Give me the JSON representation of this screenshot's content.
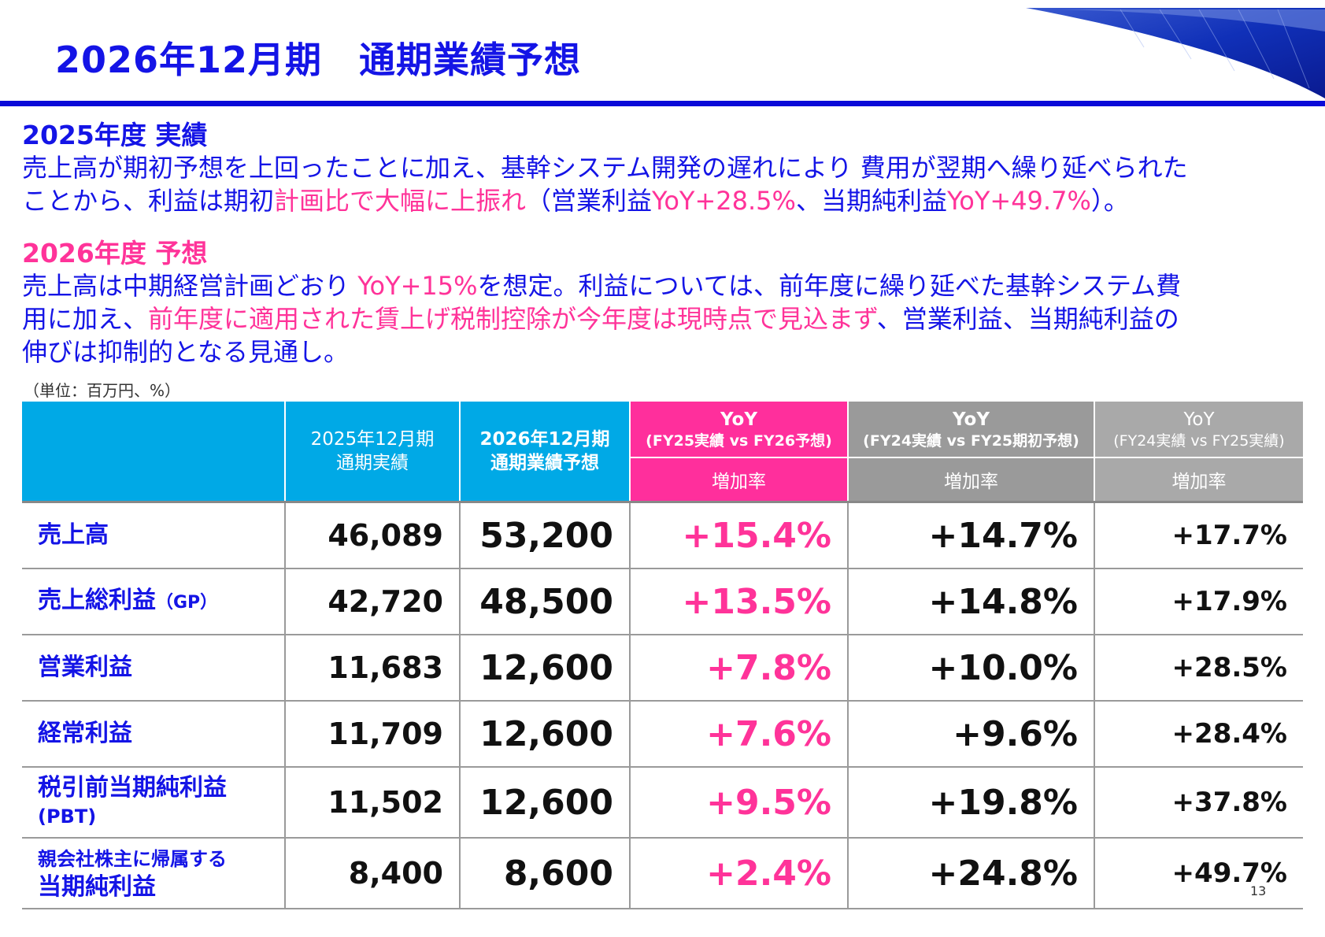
{
  "slide": {
    "title": "2026年12月期　通期業績予想",
    "page_number": "13"
  },
  "results_2025": {
    "heading": "2025年度 実績",
    "line1": "売上高が期初予想を上回ったことに加え、基幹システム開発の遅れにより 費用が翌期へ繰り延べられた",
    "line2_a": "ことから、利益は期初",
    "line2_b": "計画比で大幅に上振れ",
    "line2_c": "（営業利益",
    "line2_d": "YoY+28.5%",
    "line2_e": "、当期純利益",
    "line2_f": "YoY+49.7%",
    "line2_g": "）。"
  },
  "forecast_2026": {
    "heading": "2026年度 予想",
    "line1_a": "売上高は中期経営計画どおり ",
    "line1_b": "YoY+15%",
    "line1_c": "を想定。利益については、前年度に繰り延べた基幹システム費",
    "line2_a": "用に加え、",
    "line2_b": "前年度に適用された賃上げ税制控除が今年度は現時点で見込まず",
    "line2_c": "、営業利益、当期純利益の",
    "line3": "伸びは抑制的となる見通し。"
  },
  "table": {
    "unit": "（単位：百万円、%）",
    "headers": {
      "fy25_line1": "2025年12月期",
      "fy25_line2": "通期実績",
      "fy26_line1": "2026年12月期",
      "fy26_line2": "通期業績予想",
      "yoy1_title": "YoY",
      "yoy1_sub": "(FY25実績 vs FY26予想)",
      "yoy1_rate": "増加率",
      "yoy2_title": "YoY",
      "yoy2_sub": "(FY24実績 vs FY25期初予想)",
      "yoy2_rate": "増加率",
      "yoy3_title": "YoY",
      "yoy3_sub": "(FY24実績 vs FY25実績)",
      "yoy3_rate": "増加率"
    },
    "rows": [
      {
        "label": "売上高",
        "fy25": "46,089",
        "fy26": "53,200",
        "yoy1": "+15.4%",
        "yoy2": "+14.7%",
        "yoy3": "+17.7%"
      },
      {
        "label": "売上総利益",
        "label_suffix": "（GP）",
        "fy25": "42,720",
        "fy26": "48,500",
        "yoy1": "+13.5%",
        "yoy2": "+14.8%",
        "yoy3": "+17.9%"
      },
      {
        "label": "営業利益",
        "fy25": "11,683",
        "fy26": "12,600",
        "yoy1": "+7.8%",
        "yoy2": "+10.0%",
        "yoy3": "+28.5%"
      },
      {
        "label": "経常利益",
        "fy25": "11,709",
        "fy26": "12,600",
        "yoy1": "+7.6%",
        "yoy2": "+9.6%",
        "yoy3": "+28.4%"
      },
      {
        "label": "税引前当期純利益",
        "label_sub": "(PBT)",
        "fy25": "11,502",
        "fy26": "12,600",
        "yoy1": "+9.5%",
        "yoy2": "+19.8%",
        "yoy3": "+37.8%"
      },
      {
        "label_pre": "親会社株主に帰属する",
        "label": "当期純利益",
        "fy25": "8,400",
        "fy26": "8,600",
        "yoy1": "+2.4%",
        "yoy2": "+24.8%",
        "yoy3": "+49.7%"
      }
    ]
  },
  "colors": {
    "primary_blue": "#1414e6",
    "accent_pink": "#ff3399",
    "header_cyan": "#00a9e6",
    "header_pink": "#ff2f9c",
    "header_gray": "#9a9a9a"
  }
}
